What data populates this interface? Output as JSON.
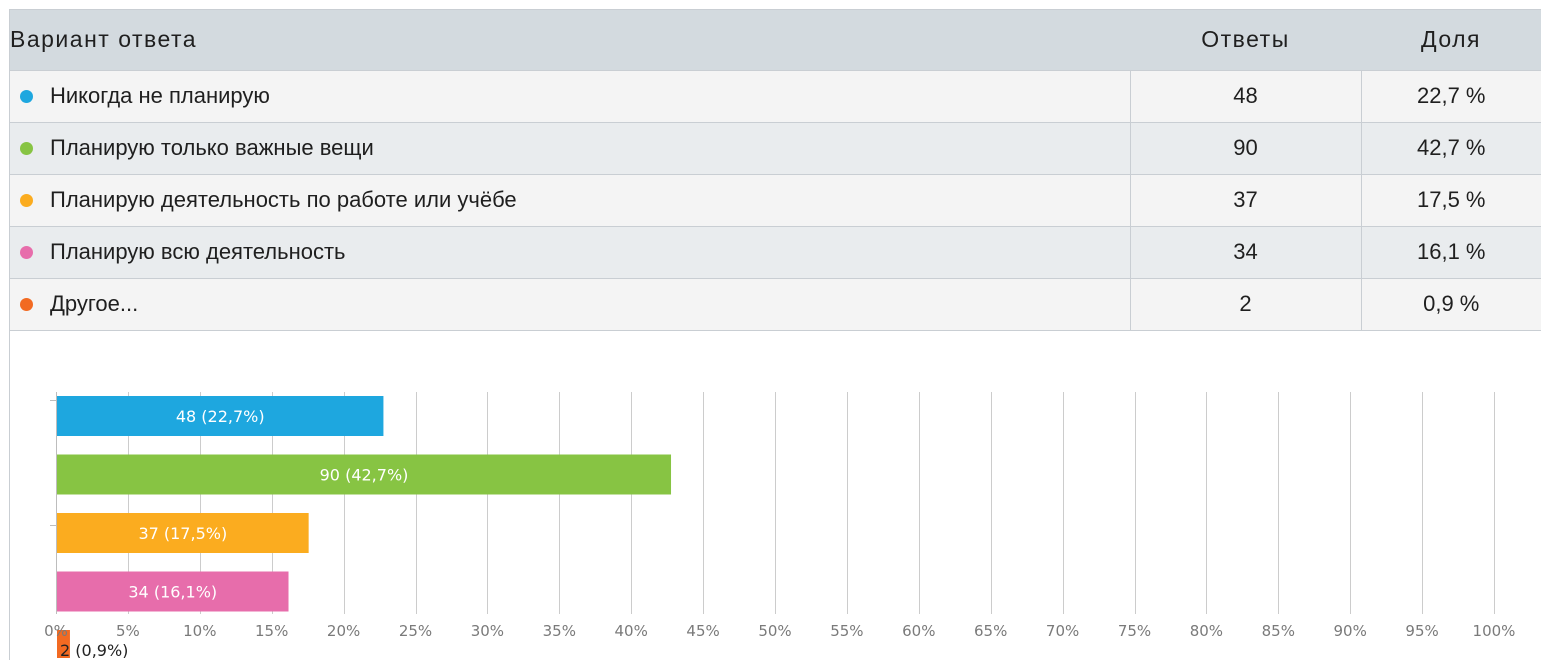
{
  "table": {
    "headers": {
      "variant": "Вариант ответа",
      "count": "Ответы",
      "share": "Доля"
    },
    "rows": [
      {
        "label": "Никогда не планирую",
        "count": "48",
        "share": "22,7 %",
        "color": "#1ea7df"
      },
      {
        "label": "Планирую только важные вещи",
        "count": "90",
        "share": "42,7 %",
        "color": "#87c443"
      },
      {
        "label": "Планирую деятельность по работе или учёбе",
        "count": "37",
        "share": "17,5 %",
        "color": "#fbac1f"
      },
      {
        "label": "Планирую всю деятельность",
        "count": "34",
        "share": "16,1 %",
        "color": "#e76dab"
      },
      {
        "label": "Другое...",
        "count": "2",
        "share": "0,9 %",
        "color": "#f26a22"
      }
    ]
  },
  "chart_data": {
    "type": "bar",
    "orientation": "horizontal",
    "values": [
      22.7,
      42.7,
      17.5,
      16.1,
      0.9
    ],
    "data_labels": [
      "48 (22,7%)",
      "90 (42,7%)",
      "37 (17,5%)",
      "34 (16,1%)",
      "2 (0,9%)"
    ],
    "colors": [
      "#1ea7df",
      "#87c443",
      "#fbac1f",
      "#e76dab",
      "#f26a22"
    ],
    "xlim": [
      0,
      100
    ],
    "xticks": [
      0,
      5,
      10,
      15,
      20,
      25,
      30,
      35,
      40,
      45,
      50,
      55,
      60,
      65,
      70,
      75,
      80,
      85,
      90,
      95,
      100
    ],
    "xtick_labels": [
      "0%",
      "5%",
      "10%",
      "15%",
      "20%",
      "25%",
      "30%",
      "35%",
      "40%",
      "45%",
      "50%",
      "55%",
      "60%",
      "65%",
      "70%",
      "75%",
      "80%",
      "85%",
      "90%",
      "95%",
      "100%"
    ],
    "grid": true,
    "legend": "none"
  }
}
